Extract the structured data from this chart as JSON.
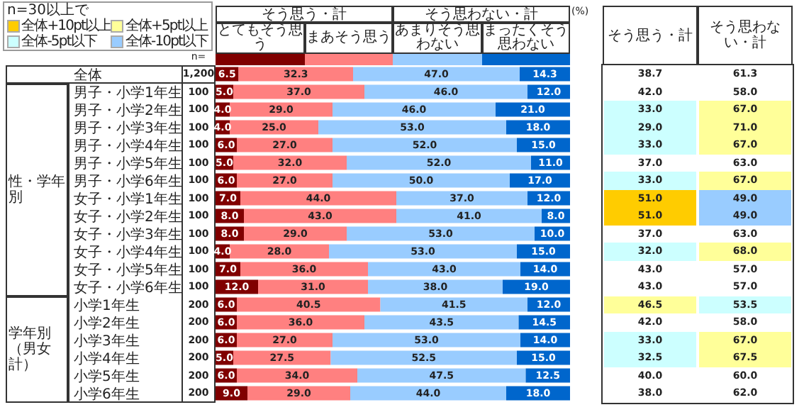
{
  "chart_data": [
    {
      "type": "bar",
      "orientation": "horizontal",
      "stacked": true,
      "categories": [
        "全体",
        "男子・小学1年生",
        "男子・小学2年生",
        "男子・小学3年生",
        "男子・小学4年生",
        "男子・小学5年生",
        "男子・小学6年生",
        "女子・小学1年生",
        "女子・小学2年生",
        "女子・小学3年生",
        "女子・小学4年生",
        "女子・小学5年生",
        "女子・小学6年生",
        "小学1年生",
        "小学2年生",
        "小学3年生",
        "小学4年生",
        "小学5年生",
        "小学6年生"
      ],
      "series": [
        {
          "name": "とてもそう思う",
          "color": "#800000",
          "values": [
            6.5,
            5,
            4,
            4,
            6,
            5,
            6,
            7,
            8,
            8,
            4,
            7,
            12,
            6,
            6,
            6,
            5,
            6,
            9
          ],
          "value_labels": [
            "6.5",
            "5.0",
            "4.0",
            "4.0",
            "6.0",
            "5.0",
            "6.0",
            "7.0",
            "8.0",
            "8.0",
            "4.0",
            "7.0",
            "12.0",
            "6.0",
            "6.0",
            "6.0",
            "5.0",
            "6.0",
            "9.0"
          ]
        },
        {
          "name": "まあそう思う",
          "color": "#ff8080",
          "values": [
            32.3,
            37,
            29,
            25,
            27,
            32,
            27,
            44,
            43,
            29,
            28,
            36,
            31,
            40.5,
            36,
            27,
            27.5,
            34,
            29
          ],
          "value_labels": [
            "32.3",
            "37.0",
            "29.0",
            "25.0",
            "27.0",
            "32.0",
            "27.0",
            "44.0",
            "43.0",
            "29.0",
            "28.0",
            "36.0",
            "31.0",
            "40.5",
            "36.0",
            "27.0",
            "27.5",
            "34.0",
            "29.0"
          ]
        },
        {
          "name": "あまりそう思わない",
          "color": "#99ccff",
          "values": [
            47,
            46,
            46,
            53,
            52,
            52,
            50,
            37,
            41,
            53,
            53,
            43,
            38,
            41.5,
            43.5,
            53,
            52.5,
            47.5,
            44
          ],
          "value_labels": [
            "47.0",
            "46.0",
            "46.0",
            "53.0",
            "52.0",
            "52.0",
            "50.0",
            "37.0",
            "41.0",
            "53.0",
            "53.0",
            "43.0",
            "38.0",
            "41.5",
            "43.5",
            "53.0",
            "52.5",
            "47.5",
            "44.0"
          ]
        },
        {
          "name": "まったくそう思わない",
          "color": "#0066cc",
          "values": [
            14.3,
            12,
            21,
            18,
            15,
            11,
            17,
            12,
            8,
            10,
            15,
            14,
            19,
            12,
            14.5,
            14,
            15,
            12.5,
            18
          ],
          "value_labels": [
            "14.3",
            "12.0",
            "21.0",
            "18.0",
            "15.0",
            "11.0",
            "17.0",
            "12.0",
            "8.0",
            "10.0",
            "15.0",
            "14.0",
            "19.0",
            "12.0",
            "14.5",
            "14.0",
            "15.0",
            "12.5",
            "18.0"
          ]
        }
      ],
      "xlim": [
        0,
        100
      ],
      "tick_labels": false,
      "legend": "top",
      "annotations": [
        "そう思う・計",
        "そう思わない・計",
        "(%)",
        "n=",
        "1,200",
        "100",
        "100",
        "100",
        "100",
        "100",
        "100",
        "100",
        "100",
        "100",
        "100",
        "100",
        "100",
        "200",
        "200",
        "200",
        "200",
        "200",
        "200",
        "性・学年別",
        "学年別（男女計）"
      ]
    },
    {
      "type": "heatmap",
      "categories": [
        "そう思う・計",
        "そう思わない・計"
      ],
      "y_categories": [
        null,
        null,
        null,
        null,
        null,
        null,
        null,
        null,
        null,
        null,
        null,
        null,
        null,
        null,
        null,
        null,
        null,
        null,
        null
      ],
      "cell_labels": [
        [
          "38.7",
          "61.3"
        ],
        [
          "42.0",
          "58.0"
        ],
        [
          "33.0",
          "67.0"
        ],
        [
          "29.0",
          "71.0"
        ],
        [
          "33.0",
          "67.0"
        ],
        [
          "37.0",
          "63.0"
        ],
        [
          "33.0",
          "67.0"
        ],
        [
          "51.0",
          "49.0"
        ],
        [
          "51.0",
          "49.0"
        ],
        [
          "37.0",
          "63.0"
        ],
        [
          "32.0",
          "68.0"
        ],
        [
          "43.0",
          "57.0"
        ],
        [
          "43.0",
          "57.0"
        ],
        [
          "46.5",
          "53.5"
        ],
        [
          "42.0",
          "58.0"
        ],
        [
          "33.0",
          "67.0"
        ],
        [
          "32.5",
          "67.5"
        ],
        [
          "40.0",
          "60.0"
        ],
        [
          "38.0",
          "62.0"
        ]
      ],
      "cells": [
        [
          38.7,
          61.3
        ],
        [
          42.0,
          58.0
        ],
        [
          33.0,
          67.0
        ],
        [
          29.0,
          71.0
        ],
        [
          33.0,
          67.0
        ],
        [
          37.0,
          63.0
        ],
        [
          33.0,
          67.0
        ],
        [
          51.0,
          49.0
        ],
        [
          51.0,
          49.0
        ],
        [
          37.0,
          63.0
        ],
        [
          32.0,
          68.0
        ],
        [
          43.0,
          57.0
        ],
        [
          43.0,
          57.0
        ],
        [
          46.5,
          53.5
        ],
        [
          42.0,
          58.0
        ],
        [
          33.0,
          67.0
        ],
        [
          32.5,
          67.5
        ],
        [
          40.0,
          60.0
        ],
        [
          38.0,
          62.0
        ]
      ],
      "legend_title": "n=30以上で",
      "annotations": [
        "全体+10pt以上",
        "全体+5pt以上",
        "全体-5pt以下",
        "全体-10pt以下"
      ]
    }
  ]
}
